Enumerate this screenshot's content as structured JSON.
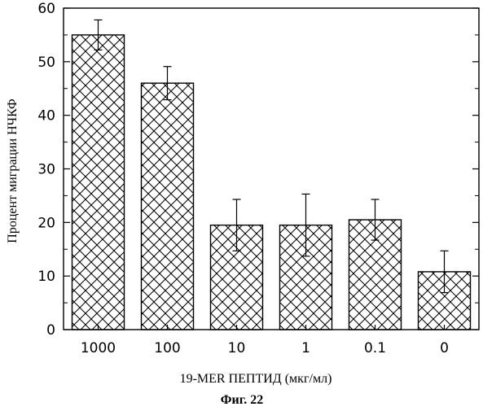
{
  "chart_data": {
    "type": "bar",
    "categories": [
      "1000",
      "100",
      "10",
      "1",
      "0.1",
      "0"
    ],
    "values": [
      55,
      46,
      19.5,
      19.5,
      20.5,
      10.8
    ],
    "errors": [
      2.8,
      3.1,
      4.8,
      5.8,
      3.8,
      3.9
    ],
    "xlabel": "19-MER ПЕПТИД (мкг/мл)",
    "ylabel": "Процент миграции НЧКФ",
    "ylim": [
      0,
      60
    ],
    "yticks": [
      0,
      10,
      20,
      30,
      40,
      50,
      60
    ],
    "grid": false,
    "bar_pattern": "crosshatch",
    "bar_color": "#000000"
  },
  "caption": "Фиг. 22"
}
